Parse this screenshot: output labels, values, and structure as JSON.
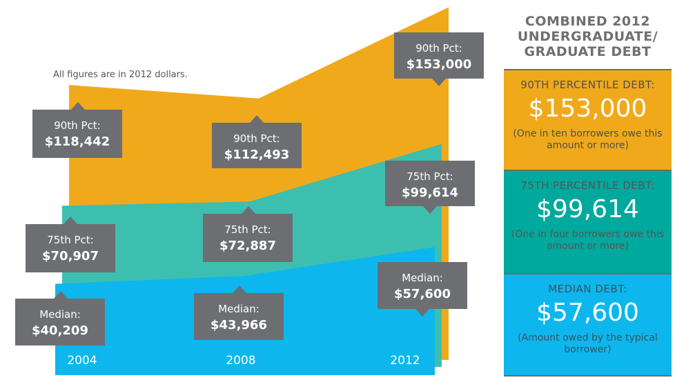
{
  "note": "All figures are in 2012 dollars.",
  "chart_data": {
    "type": "area",
    "x": [
      "2004",
      "2008",
      "2012"
    ],
    "colors": {
      "p90": "#f0a91b",
      "p75": "#3dbfb0",
      "median": "#0db7ee",
      "callout": "#6d6e71"
    },
    "series": [
      {
        "key": "p90",
        "name": "90th Pct:",
        "values": [
          118442,
          112493,
          153000
        ],
        "labels": [
          "$118,442",
          "$112,493",
          "$153,000"
        ]
      },
      {
        "key": "p75",
        "name": "75th Pct:",
        "values": [
          70907,
          72887,
          99614
        ],
        "labels": [
          "$70,907",
          "$72,887",
          "$99,614"
        ]
      },
      {
        "key": "median",
        "name": "Median:",
        "values": [
          40209,
          43966,
          57600
        ],
        "labels": [
          "$40,209",
          "$43,966",
          "$57,600"
        ]
      }
    ]
  },
  "sidebar": {
    "title_lines": [
      "COMBINED 2012",
      "UNDERGRADUATE/",
      "GRADUATE DEBT"
    ],
    "panels": [
      {
        "label": "90TH PERCENTILE DEBT:",
        "amount": "$153,000",
        "desc": "(One in ten borrowers owe this amount or more)"
      },
      {
        "label": "75TH PERCENTILE DEBT:",
        "amount": "$99,614",
        "desc": "(One in four borrowers owe this amount or more)"
      },
      {
        "label": "MEDIAN DEBT:",
        "amount": "$57,600",
        "desc": "(Amount owed by the typical borrower)"
      }
    ]
  }
}
